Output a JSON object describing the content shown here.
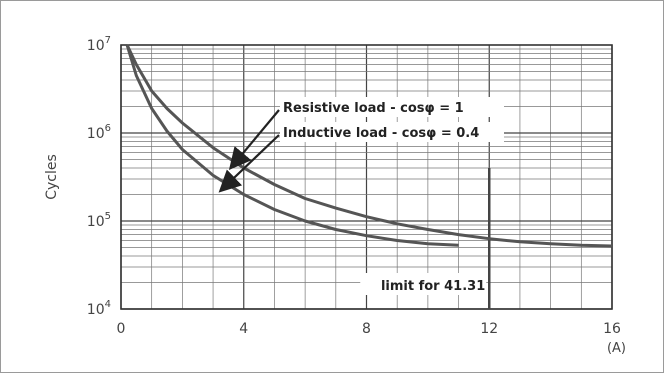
{
  "chart_data": {
    "type": "line",
    "ylabel": "Cycles",
    "xlabel": "",
    "x_unit": "(A)",
    "x_ticks": [
      0,
      4,
      8,
      12,
      16
    ],
    "y_ticks": [
      {
        "value": 10000,
        "base": "10",
        "exp": "4"
      },
      {
        "value": 100000,
        "base": "10",
        "exp": "5"
      },
      {
        "value": 1000000,
        "base": "10",
        "exp": "6"
      },
      {
        "value": 10000000,
        "base": "10",
        "exp": "7"
      }
    ],
    "xlim": [
      0,
      16
    ],
    "ylim": [
      10000,
      10000000
    ],
    "y_scale": "log",
    "grid": true,
    "series": [
      {
        "name": "Resistive load - cosφ = 1",
        "color": "#555555",
        "x": [
          0.2,
          0.5,
          1,
          1.5,
          2,
          3,
          4,
          5,
          6,
          7,
          8,
          9,
          10,
          11,
          12,
          13,
          14,
          15,
          16
        ],
        "y": [
          10000000,
          6000000,
          3000000,
          1900000,
          1300000,
          680000,
          400000,
          260000,
          180000,
          140000,
          112000,
          93000,
          80000,
          70000,
          63000,
          58000,
          55000,
          53000,
          52000
        ]
      },
      {
        "name": "Inductive load - cosφ = 0.4",
        "color": "#555555",
        "x": [
          0.2,
          0.5,
          1,
          1.5,
          2,
          3,
          4,
          5,
          6,
          7,
          8,
          9,
          10,
          11
        ],
        "y": [
          10000000,
          4500000,
          1900000,
          1050000,
          650000,
          330000,
          200000,
          135000,
          100000,
          80000,
          68000,
          60000,
          55000,
          53000
        ]
      }
    ],
    "annotations": [
      {
        "text": "limit for 41.31",
        "x": 12
      }
    ]
  }
}
